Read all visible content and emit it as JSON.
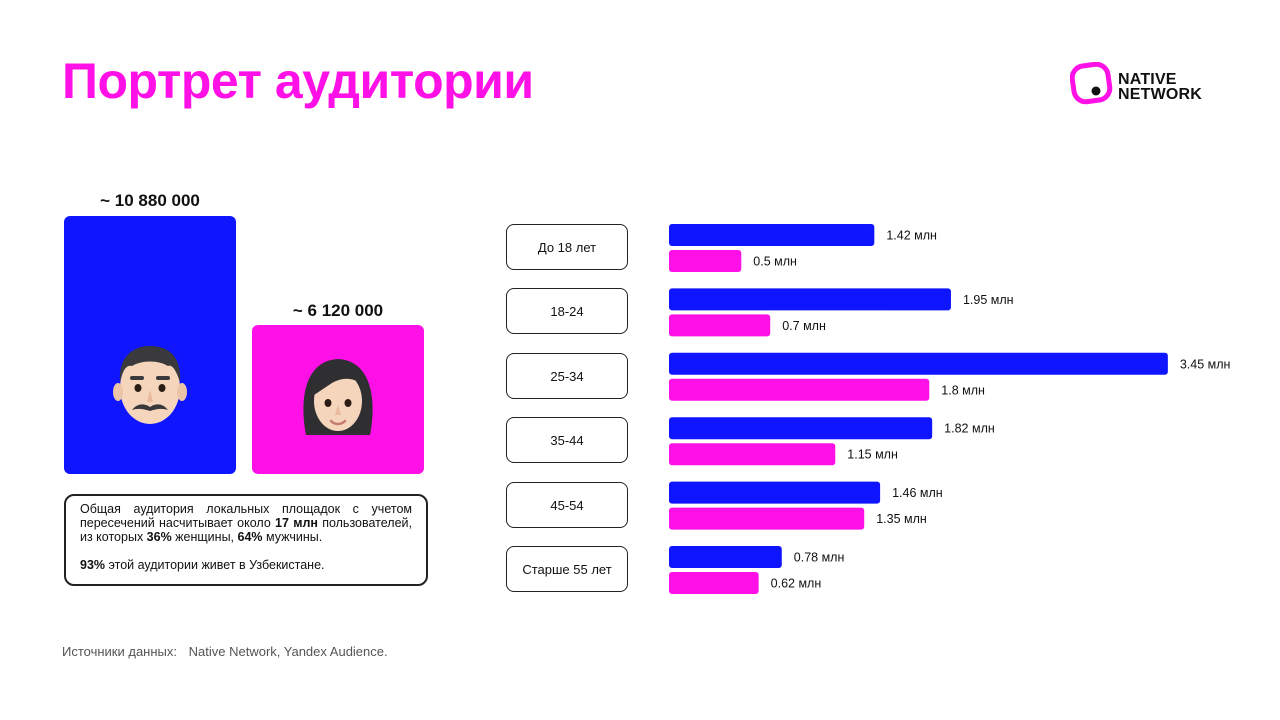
{
  "title": "Портрет аудитории",
  "logo": {
    "line1": "NATIVE",
    "line2": "NETWORK"
  },
  "gender": {
    "male": {
      "value": "~ 10 880 000",
      "color": "#0f16ff"
    },
    "female": {
      "value": "~ 6 120 000",
      "color": "#ff10e6"
    }
  },
  "info": {
    "p1_a": "Общая аудитория локальных площадок с учетом пересечений насчитывает около ",
    "p1_b": "17 млн",
    "p1_c": " пользователей, из которых ",
    "p1_d": "36%",
    "p1_e": " женщины, ",
    "p1_f": "64%",
    "p1_g": " мужчины.",
    "p2_a": "93%",
    "p2_b": " этой аудитории живет в Узбекистане."
  },
  "source": {
    "label": "Источники данных:",
    "value": "Native Network, Yandex Audience."
  },
  "colors": {
    "male": "#0f16ff",
    "female": "#ff10e6"
  },
  "chart_data": {
    "type": "bar",
    "orientation": "horizontal",
    "categories": [
      "До 18 лет",
      "18-24",
      "25-34",
      "35-44",
      "45-54",
      "Старше 55 лет"
    ],
    "series": [
      {
        "color": "#0f16ff",
        "values": [
          1.42,
          1.95,
          3.45,
          1.82,
          1.46,
          0.78
        ],
        "labels": [
          "1.42 млн",
          "1.95 млн",
          "3.45 млн",
          "1.82 млн",
          "1.46 млн",
          "0.78 млн"
        ]
      },
      {
        "color": "#ff10e6",
        "values": [
          0.5,
          0.7,
          1.8,
          1.15,
          1.35,
          0.62
        ],
        "labels": [
          "0.5 млн",
          "0.7 млн",
          "1.8 млн",
          "1.15 млн",
          "1.35 млн",
          "0.62 млн"
        ]
      }
    ],
    "grid": false,
    "legend": "none"
  }
}
